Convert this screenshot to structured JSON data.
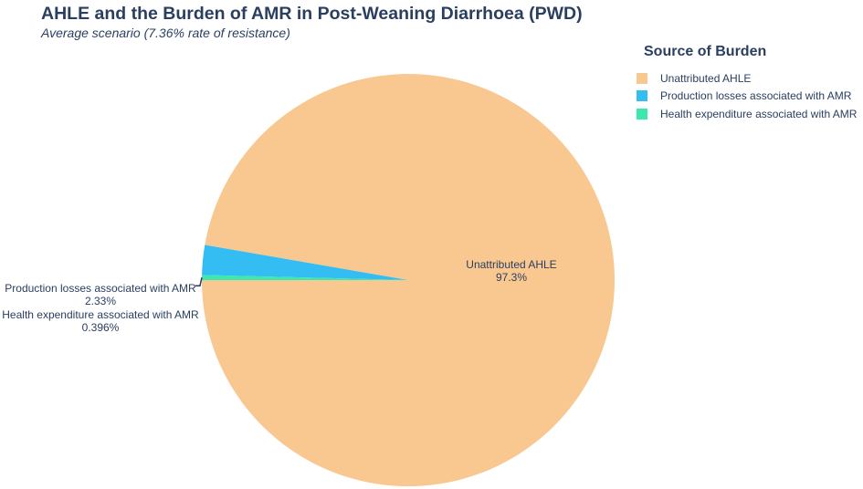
{
  "chart_data": {
    "type": "pie",
    "title": "AHLE and the Burden of AMR in Post-Weaning Diarrhoea (PWD)",
    "subtitle": "Average scenario (7.36% rate of resistance)",
    "legend_title": "Source of Burden",
    "legend_position": "top-right",
    "slices": [
      {
        "label": "Unattributed AHLE",
        "percent": 97.3,
        "display": "97.3%",
        "color": "#f9c891"
      },
      {
        "label": "Production losses associated with AMR",
        "percent": 2.33,
        "display": "2.33%",
        "color": "#33bdf2"
      },
      {
        "label": "Health expenditure associated with AMR",
        "percent": 0.396,
        "display": "0.396%",
        "color": "#3ce8b0"
      }
    ]
  }
}
